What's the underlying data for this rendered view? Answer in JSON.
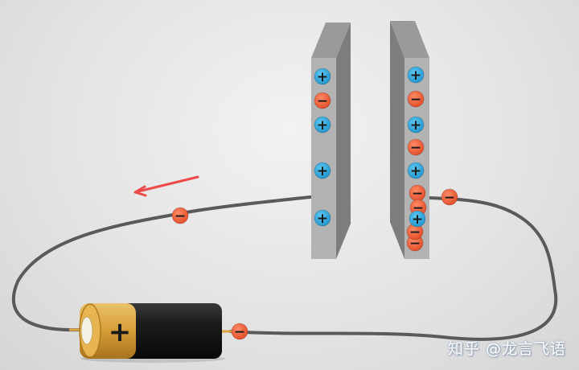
{
  "watermark": "知乎 @龙言飞语",
  "symbols": {
    "positive": "+",
    "negative": "−"
  },
  "colors": {
    "positive_charge": "#2aa7e0",
    "negative_charge": "#ee5a35",
    "plate_face": "#b3b3b3",
    "plate_side": "#7d7d7d",
    "wire": "#5a5a5a",
    "arrow": "#ee4a4a",
    "battery_body": "#1c1c1c",
    "battery_cap": "#d9a13a"
  },
  "left_plate": {
    "charges": [
      "positive",
      "negative",
      "positive",
      "positive",
      "positive"
    ]
  },
  "right_plate": {
    "charges": [
      "positive",
      "negative",
      "positive",
      "negative",
      "positive",
      "negative",
      "negative",
      "positive",
      "negative",
      "negative"
    ]
  },
  "wire_electrons": 3,
  "battery": {
    "terminal_label": "+"
  },
  "arrow_direction": "left"
}
